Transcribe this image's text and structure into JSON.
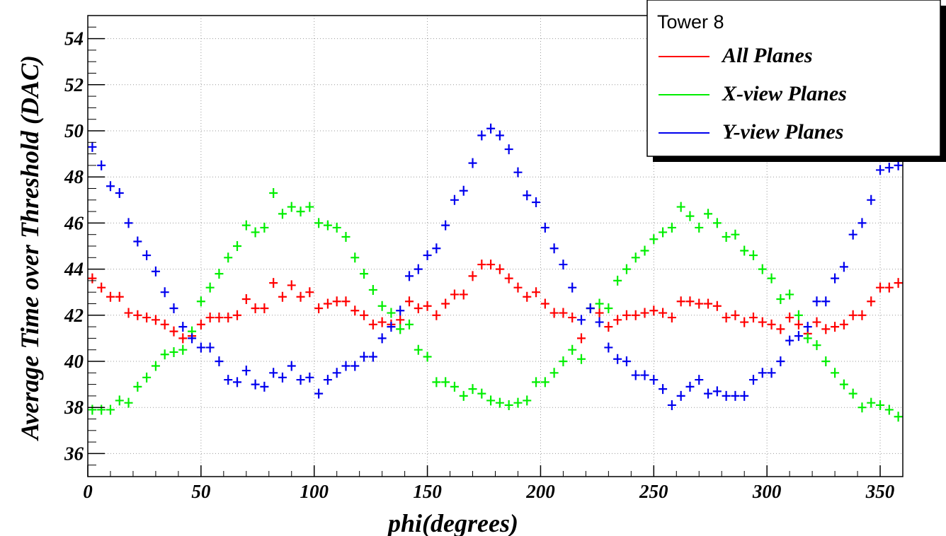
{
  "chart_data": {
    "type": "scatter",
    "title": "",
    "xlabel": "phi(degrees)",
    "ylabel": "Average Time over Threshold (DAC)",
    "xlim": [
      0,
      360
    ],
    "ylim": [
      35,
      55
    ],
    "x_ticks": [
      0,
      50,
      100,
      150,
      200,
      250,
      300,
      350
    ],
    "y_ticks": [
      36,
      38,
      40,
      42,
      44,
      46,
      48,
      50,
      52,
      54
    ],
    "grid": true,
    "legend": {
      "title": "Tower 8",
      "placement": "top-right",
      "entries": [
        "All Planes",
        "X-view Planes",
        "Y-view Planes"
      ]
    },
    "x": [
      2,
      6,
      10,
      14,
      18,
      22,
      26,
      30,
      34,
      38,
      42,
      46,
      50,
      54,
      58,
      62,
      66,
      70,
      74,
      78,
      82,
      86,
      90,
      94,
      98,
      102,
      106,
      110,
      114,
      118,
      122,
      126,
      130,
      134,
      138,
      142,
      146,
      150,
      154,
      158,
      162,
      166,
      170,
      174,
      178,
      182,
      186,
      190,
      194,
      198,
      202,
      206,
      210,
      214,
      218,
      222,
      226,
      230,
      234,
      238,
      242,
      246,
      250,
      254,
      258,
      262,
      266,
      270,
      274,
      278,
      282,
      286,
      290,
      294,
      298,
      302,
      306,
      310,
      314,
      318,
      322,
      326,
      330,
      334,
      338,
      342,
      346,
      350,
      354,
      358
    ],
    "series": [
      {
        "name": "All Planes",
        "color": "#ff0000",
        "values": [
          43.6,
          43.2,
          42.8,
          42.8,
          42.1,
          42.0,
          41.9,
          41.8,
          41.6,
          41.3,
          41.0,
          41.1,
          41.6,
          41.9,
          41.9,
          41.9,
          42.0,
          42.7,
          42.3,
          42.3,
          43.4,
          42.8,
          43.3,
          42.8,
          43.0,
          42.3,
          42.5,
          42.6,
          42.6,
          42.2,
          42.0,
          41.6,
          41.7,
          41.6,
          41.8,
          42.6,
          42.3,
          42.4,
          42.0,
          42.5,
          42.9,
          42.9,
          43.7,
          44.2,
          44.2,
          44.0,
          43.6,
          43.2,
          42.8,
          43.0,
          42.5,
          42.1,
          42.1,
          41.9,
          41.0,
          42.3,
          42.1,
          41.5,
          41.8,
          42.0,
          42.0,
          42.1,
          42.2,
          42.1,
          41.9,
          42.6,
          42.6,
          42.5,
          42.5,
          42.4,
          41.9,
          42.0,
          41.7,
          41.9,
          41.7,
          41.6,
          41.4,
          41.9,
          41.6,
          41.2,
          41.7,
          41.4,
          41.5,
          41.6,
          42.0,
          42.0,
          42.6,
          43.2,
          43.2,
          43.4
        ]
      },
      {
        "name": "X-view Planes",
        "color": "#00ee00",
        "values": [
          37.9,
          37.9,
          37.9,
          38.3,
          38.2,
          38.9,
          39.3,
          39.8,
          40.3,
          40.4,
          40.5,
          41.3,
          42.6,
          43.2,
          43.8,
          44.5,
          45.0,
          45.9,
          45.6,
          45.8,
          47.3,
          46.4,
          46.7,
          46.5,
          46.7,
          46.0,
          45.9,
          45.8,
          45.4,
          44.5,
          43.8,
          43.1,
          42.4,
          42.1,
          41.4,
          41.6,
          40.5,
          40.2,
          39.1,
          39.1,
          38.9,
          38.5,
          38.8,
          38.6,
          38.3,
          38.2,
          38.1,
          38.2,
          38.3,
          39.1,
          39.1,
          39.5,
          40.0,
          40.5,
          40.1,
          42.3,
          42.5,
          42.3,
          43.5,
          44.0,
          44.5,
          44.8,
          45.3,
          45.6,
          45.8,
          46.7,
          46.3,
          45.8,
          46.4,
          46.0,
          45.4,
          45.5,
          44.8,
          44.6,
          44.0,
          43.6,
          42.7,
          42.9,
          42.0,
          41.0,
          40.7,
          40.0,
          39.5,
          39.0,
          38.6,
          38.0,
          38.2,
          38.1,
          37.9,
          37.6
        ]
      },
      {
        "name": "Y-view Planes",
        "color": "#0000ee",
        "values": [
          49.3,
          48.5,
          47.6,
          47.3,
          46.0,
          45.2,
          44.6,
          43.9,
          43.0,
          42.3,
          41.5,
          41.0,
          40.6,
          40.6,
          40.0,
          39.2,
          39.1,
          39.6,
          39.0,
          38.9,
          39.5,
          39.3,
          39.8,
          39.2,
          39.3,
          38.6,
          39.2,
          39.5,
          39.8,
          39.8,
          40.2,
          40.2,
          41.0,
          41.5,
          42.2,
          43.7,
          44.0,
          44.6,
          44.9,
          45.9,
          47.0,
          47.4,
          48.6,
          49.8,
          50.1,
          49.8,
          49.2,
          48.2,
          47.2,
          46.9,
          45.8,
          44.9,
          44.2,
          43.2,
          41.8,
          42.3,
          41.7,
          40.6,
          40.1,
          40.0,
          39.4,
          39.4,
          39.2,
          38.8,
          38.1,
          38.5,
          38.9,
          39.2,
          38.6,
          38.7,
          38.5,
          38.5,
          38.5,
          39.2,
          39.5,
          39.5,
          40.0,
          40.9,
          41.1,
          41.5,
          42.6,
          42.6,
          43.6,
          44.1,
          45.5,
          46.0,
          47.0,
          48.3,
          48.4,
          48.5
        ]
      }
    ]
  }
}
